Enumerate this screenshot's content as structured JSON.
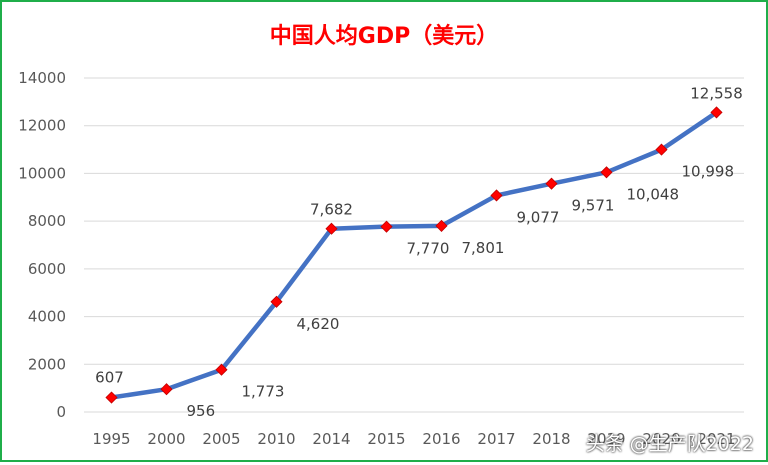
{
  "chart_data": {
    "type": "line",
    "title": "中国人均GDP（美元）",
    "categories": [
      "1995",
      "2000",
      "2005",
      "2010",
      "2014",
      "2015",
      "2016",
      "2017",
      "2018",
      "2019",
      "2020",
      "2021"
    ],
    "series": [
      {
        "values": [
          607,
          956,
          1773,
          4620,
          7682,
          7770,
          7801,
          9077,
          9571,
          10048,
          10998,
          12558
        ],
        "labels": [
          "607",
          "956",
          "1,773",
          "4,620",
          "7,682",
          "7,770",
          "7,801",
          "9,077",
          "9,571",
          "10,048",
          "10,998",
          "12,558"
        ]
      }
    ],
    "ylim": [
      0,
      14000
    ],
    "yticks": [
      "0",
      "2000",
      "4000",
      "6000",
      "8000",
      "10000",
      "12000",
      "14000"
    ],
    "grid": true,
    "legend": "none",
    "xlabel": "",
    "ylabel": ""
  },
  "colors": {
    "line": "#4472c4",
    "marker": "#ff0000",
    "title": "#ff0000",
    "border": "#1fae4a",
    "grid": "#d9d9d9"
  },
  "watermark": "头条 @生产队2022"
}
